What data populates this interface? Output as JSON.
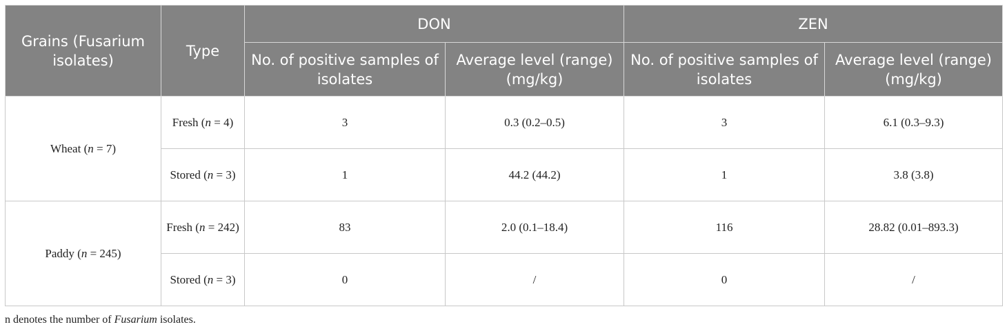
{
  "header": {
    "grains": "Grains (Fusarium isolates)",
    "type": "Type",
    "don": "DON",
    "zen": "ZEN",
    "positive": "No. of positive samples of isolates",
    "average": "Average level (range) (mg/kg)"
  },
  "groups": [
    {
      "grain_name": "Wheat",
      "grain_n": "7",
      "rows": [
        {
          "type": "Fresh",
          "n": "4",
          "don_count": "3",
          "don_avg": "0.3 (0.2–0.5)",
          "zen_count": "3",
          "zen_avg": "6.1 (0.3–9.3)"
        },
        {
          "type": "Stored",
          "n": "3",
          "don_count": "1",
          "don_avg": "44.2 (44.2)",
          "zen_count": "1",
          "zen_avg": "3.8 (3.8)"
        }
      ]
    },
    {
      "grain_name": "Paddy",
      "grain_n": "245",
      "rows": [
        {
          "type": "Fresh",
          "n": "242",
          "don_count": "83",
          "don_avg": "2.0 (0.1–18.4)",
          "zen_count": "116",
          "zen_avg": "28.82 (0.01–893.3)"
        },
        {
          "type": "Stored",
          "n": "3",
          "don_count": "0",
          "don_avg": "/",
          "zen_count": "0",
          "zen_avg": "/"
        }
      ]
    }
  ],
  "n_symbol": "n",
  "footnote": {
    "prefix": "n denotes the number of ",
    "italic": "Fusarium",
    "suffix": " isolates."
  }
}
